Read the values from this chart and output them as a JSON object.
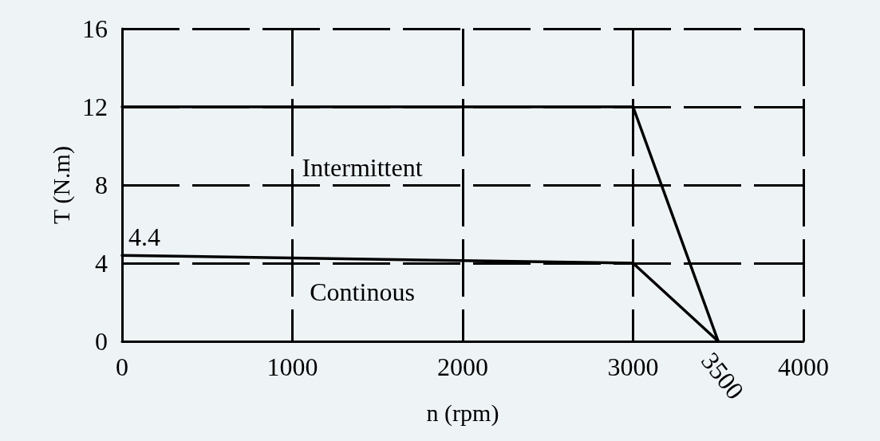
{
  "chart_data": {
    "type": "line",
    "xlabel": "n (rpm)",
    "ylabel": "T (N.m)",
    "x": [
      0,
      3000,
      3500
    ],
    "series": [
      {
        "name": "Intermittent",
        "color": "#000000",
        "values": [
          12,
          12,
          0
        ]
      },
      {
        "name": "Continous",
        "color": "#000000",
        "values": [
          4.4,
          4,
          0
        ],
        "value_labels": [
          "4.4",
          null,
          null
        ]
      }
    ],
    "xlim": [
      0,
      4000
    ],
    "xticks": [
      0,
      1000,
      2000,
      3000,
      4000
    ],
    "ylim": [
      0,
      16
    ],
    "yticks": [
      0,
      4,
      8,
      12,
      16
    ],
    "grid": true,
    "marker": "none",
    "line_style": "solid",
    "annotations": [
      {
        "text": "3500",
        "x": 3500,
        "y": 0
      }
    ]
  }
}
